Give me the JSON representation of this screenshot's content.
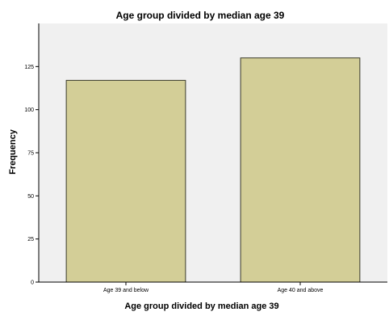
{
  "chart_data": {
    "type": "bar",
    "title": "Age group divided by median age 39",
    "xlabel": "Age group divided by median age 39",
    "ylabel": "Frequency",
    "categories": [
      "Age 39 and below",
      "Age 40 and above"
    ],
    "values": [
      117,
      130
    ],
    "ylim": [
      0,
      150
    ],
    "yticks": [
      0,
      25,
      50,
      75,
      100,
      125
    ],
    "grid": false,
    "legend": "none",
    "colors": {
      "bar_fill": "#d3ce97",
      "bar_stroke": "#3a3a2a",
      "plot_background": "#f0f0f0"
    }
  }
}
